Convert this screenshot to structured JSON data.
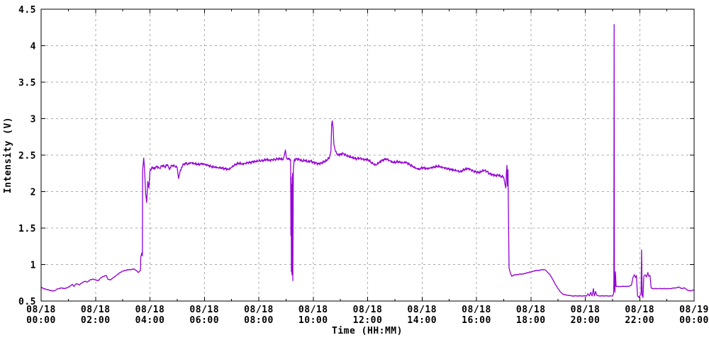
{
  "chart_data": {
    "type": "line",
    "title": "",
    "xlabel": "Time (HH:MM)",
    "ylabel": "Intensity (V)",
    "xlim_hours": [
      0,
      24
    ],
    "ylim": [
      0.5,
      4.5
    ],
    "x_major_tick_interval_hours": 2,
    "x_minor_tick_interval_hours": 1,
    "grid": "dashed, both axes",
    "legend": "none",
    "colors": {
      "line": "#9400d3",
      "grid": "#aaaaaa",
      "axis": "#000000",
      "text": "#000000",
      "background": "#ffffff"
    },
    "y_ticks": [
      "0.5",
      "1",
      "1.5",
      "2",
      "2.5",
      "3",
      "3.5",
      "4",
      "4.5"
    ],
    "x_ticks": [
      {
        "date": "08/18",
        "time": "00:00"
      },
      {
        "date": "08/18",
        "time": "02:00"
      },
      {
        "date": "08/18",
        "time": "04:00"
      },
      {
        "date": "08/18",
        "time": "06:00"
      },
      {
        "date": "08/18",
        "time": "08:00"
      },
      {
        "date": "08/18",
        "time": "10:00"
      },
      {
        "date": "08/18",
        "time": "12:00"
      },
      {
        "date": "08/18",
        "time": "14:00"
      },
      {
        "date": "08/18",
        "time": "16:00"
      },
      {
        "date": "08/18",
        "time": "18:00"
      },
      {
        "date": "08/18",
        "time": "20:00"
      },
      {
        "date": "08/18",
        "time": "22:00"
      },
      {
        "date": "08/19",
        "time": "00:00"
      }
    ],
    "noise_amplitude_v": {
      "high_level": 0.022,
      "low_level": 0.005
    },
    "series": [
      {
        "name": "intensity",
        "x_unit": "hours since 08/18 00:00",
        "y_unit": "V",
        "points": [
          [
            0.0,
            0.69
          ],
          [
            0.1,
            0.67
          ],
          [
            0.2,
            0.66
          ],
          [
            0.3,
            0.65
          ],
          [
            0.4,
            0.64
          ],
          [
            0.5,
            0.64
          ],
          [
            0.57,
            0.66
          ],
          [
            0.65,
            0.67
          ],
          [
            0.75,
            0.68
          ],
          [
            0.85,
            0.67
          ],
          [
            0.95,
            0.68
          ],
          [
            1.05,
            0.7
          ],
          [
            1.15,
            0.73
          ],
          [
            1.2,
            0.7
          ],
          [
            1.3,
            0.74
          ],
          [
            1.4,
            0.72
          ],
          [
            1.5,
            0.75
          ],
          [
            1.6,
            0.77
          ],
          [
            1.7,
            0.76
          ],
          [
            1.8,
            0.79
          ],
          [
            1.9,
            0.8
          ],
          [
            2.0,
            0.79
          ],
          [
            2.1,
            0.78
          ],
          [
            2.2,
            0.82
          ],
          [
            2.3,
            0.84
          ],
          [
            2.4,
            0.85
          ],
          [
            2.45,
            0.8
          ],
          [
            2.55,
            0.79
          ],
          [
            2.65,
            0.82
          ],
          [
            2.8,
            0.86
          ],
          [
            2.9,
            0.89
          ],
          [
            3.0,
            0.91
          ],
          [
            3.1,
            0.92
          ],
          [
            3.2,
            0.93
          ],
          [
            3.3,
            0.93
          ],
          [
            3.4,
            0.94
          ],
          [
            3.5,
            0.92
          ],
          [
            3.57,
            0.89
          ],
          [
            3.62,
            0.91
          ],
          [
            3.65,
            0.92
          ],
          [
            3.66,
            1.1
          ],
          [
            3.7,
            1.16
          ],
          [
            3.72,
            1.12
          ],
          [
            3.73,
            2.28
          ],
          [
            3.77,
            2.46
          ],
          [
            3.8,
            2.32
          ],
          [
            3.84,
            1.98
          ],
          [
            3.88,
            1.85
          ],
          [
            3.92,
            2.14
          ],
          [
            3.96,
            2.05
          ],
          [
            4.0,
            2.28
          ],
          [
            4.08,
            2.34
          ],
          [
            4.15,
            2.31
          ],
          [
            4.25,
            2.35
          ],
          [
            4.35,
            2.32
          ],
          [
            4.45,
            2.36
          ],
          [
            4.55,
            2.34
          ],
          [
            4.65,
            2.37
          ],
          [
            4.72,
            2.3
          ],
          [
            4.8,
            2.36
          ],
          [
            4.9,
            2.35
          ],
          [
            5.0,
            2.33
          ],
          [
            5.05,
            2.18
          ],
          [
            5.12,
            2.3
          ],
          [
            5.2,
            2.36
          ],
          [
            5.3,
            2.39
          ],
          [
            5.4,
            2.38
          ],
          [
            5.5,
            2.4
          ],
          [
            5.6,
            2.39
          ],
          [
            5.7,
            2.38
          ],
          [
            5.8,
            2.37
          ],
          [
            5.9,
            2.38
          ],
          [
            6.0,
            2.37
          ],
          [
            6.1,
            2.36
          ],
          [
            6.2,
            2.35
          ],
          [
            6.3,
            2.34
          ],
          [
            6.4,
            2.34
          ],
          [
            6.5,
            2.33
          ],
          [
            6.6,
            2.33
          ],
          [
            6.7,
            2.32
          ],
          [
            6.8,
            2.31
          ],
          [
            6.9,
            2.3
          ],
          [
            7.0,
            2.33
          ],
          [
            7.1,
            2.36
          ],
          [
            7.2,
            2.38
          ],
          [
            7.3,
            2.39
          ],
          [
            7.4,
            2.38
          ],
          [
            7.5,
            2.39
          ],
          [
            7.6,
            2.4
          ],
          [
            7.7,
            2.4
          ],
          [
            7.8,
            2.41
          ],
          [
            7.9,
            2.41
          ],
          [
            8.0,
            2.42
          ],
          [
            8.1,
            2.42
          ],
          [
            8.2,
            2.43
          ],
          [
            8.3,
            2.44
          ],
          [
            8.4,
            2.43
          ],
          [
            8.5,
            2.44
          ],
          [
            8.6,
            2.44
          ],
          [
            8.7,
            2.45
          ],
          [
            8.8,
            2.45
          ],
          [
            8.9,
            2.44
          ],
          [
            8.98,
            2.57
          ],
          [
            9.02,
            2.45
          ],
          [
            9.1,
            2.44
          ],
          [
            9.17,
            2.44
          ],
          [
            9.18,
            1.4
          ],
          [
            9.19,
            2.2
          ],
          [
            9.2,
            0.9
          ],
          [
            9.21,
            2.1
          ],
          [
            9.22,
            0.86
          ],
          [
            9.24,
            2.25
          ],
          [
            9.25,
            0.78
          ],
          [
            9.27,
            2.3
          ],
          [
            9.3,
            2.43
          ],
          [
            9.4,
            2.45
          ],
          [
            9.5,
            2.44
          ],
          [
            9.6,
            2.42
          ],
          [
            9.7,
            2.43
          ],
          [
            9.8,
            2.41
          ],
          [
            9.9,
            2.42
          ],
          [
            10.0,
            2.4
          ],
          [
            10.1,
            2.39
          ],
          [
            10.2,
            2.38
          ],
          [
            10.3,
            2.39
          ],
          [
            10.4,
            2.41
          ],
          [
            10.5,
            2.43
          ],
          [
            10.6,
            2.47
          ],
          [
            10.65,
            2.55
          ],
          [
            10.68,
            2.92
          ],
          [
            10.7,
            2.97
          ],
          [
            10.73,
            2.88
          ],
          [
            10.76,
            2.65
          ],
          [
            10.82,
            2.55
          ],
          [
            10.9,
            2.5
          ],
          [
            11.0,
            2.51
          ],
          [
            11.1,
            2.52
          ],
          [
            11.2,
            2.5
          ],
          [
            11.3,
            2.48
          ],
          [
            11.4,
            2.47
          ],
          [
            11.5,
            2.46
          ],
          [
            11.6,
            2.45
          ],
          [
            11.7,
            2.46
          ],
          [
            11.8,
            2.45
          ],
          [
            11.9,
            2.44
          ],
          [
            12.0,
            2.44
          ],
          [
            12.1,
            2.41
          ],
          [
            12.2,
            2.38
          ],
          [
            12.3,
            2.36
          ],
          [
            12.4,
            2.39
          ],
          [
            12.5,
            2.42
          ],
          [
            12.6,
            2.44
          ],
          [
            12.7,
            2.45
          ],
          [
            12.8,
            2.43
          ],
          [
            12.9,
            2.41
          ],
          [
            13.0,
            2.4
          ],
          [
            13.1,
            2.41
          ],
          [
            13.2,
            2.4
          ],
          [
            13.3,
            2.39
          ],
          [
            13.4,
            2.4
          ],
          [
            13.5,
            2.38
          ],
          [
            13.6,
            2.36
          ],
          [
            13.7,
            2.34
          ],
          [
            13.8,
            2.32
          ],
          [
            13.9,
            2.31
          ],
          [
            14.0,
            2.33
          ],
          [
            14.1,
            2.32
          ],
          [
            14.2,
            2.31
          ],
          [
            14.3,
            2.32
          ],
          [
            14.4,
            2.33
          ],
          [
            14.5,
            2.34
          ],
          [
            14.6,
            2.35
          ],
          [
            14.7,
            2.34
          ],
          [
            14.8,
            2.33
          ],
          [
            14.9,
            2.32
          ],
          [
            15.0,
            2.31
          ],
          [
            15.1,
            2.3
          ],
          [
            15.2,
            2.29
          ],
          [
            15.3,
            2.28
          ],
          [
            15.4,
            2.27
          ],
          [
            15.5,
            2.29
          ],
          [
            15.6,
            2.31
          ],
          [
            15.7,
            2.32
          ],
          [
            15.8,
            2.3
          ],
          [
            15.9,
            2.28
          ],
          [
            16.0,
            2.27
          ],
          [
            16.1,
            2.26
          ],
          [
            16.2,
            2.28
          ],
          [
            16.3,
            2.29
          ],
          [
            16.4,
            2.27
          ],
          [
            16.5,
            2.24
          ],
          [
            16.6,
            2.23
          ],
          [
            16.7,
            2.22
          ],
          [
            16.8,
            2.23
          ],
          [
            16.9,
            2.21
          ],
          [
            17.0,
            2.2
          ],
          [
            17.05,
            2.1
          ],
          [
            17.08,
            2.05
          ],
          [
            17.1,
            2.25
          ],
          [
            17.12,
            2.36
          ],
          [
            17.14,
            2.08
          ],
          [
            17.16,
            2.3
          ],
          [
            17.17,
            1.9
          ],
          [
            17.2,
            0.95
          ],
          [
            17.25,
            0.88
          ],
          [
            17.3,
            0.84
          ],
          [
            17.4,
            0.86
          ],
          [
            17.5,
            0.86
          ],
          [
            17.6,
            0.87
          ],
          [
            17.7,
            0.87
          ],
          [
            17.8,
            0.88
          ],
          [
            17.9,
            0.89
          ],
          [
            18.0,
            0.9
          ],
          [
            18.1,
            0.91
          ],
          [
            18.2,
            0.92
          ],
          [
            18.3,
            0.92
          ],
          [
            18.4,
            0.93
          ],
          [
            18.5,
            0.93
          ],
          [
            18.55,
            0.92
          ],
          [
            18.6,
            0.9
          ],
          [
            18.7,
            0.86
          ],
          [
            18.8,
            0.8
          ],
          [
            18.9,
            0.73
          ],
          [
            19.0,
            0.67
          ],
          [
            19.1,
            0.62
          ],
          [
            19.2,
            0.59
          ],
          [
            19.35,
            0.58
          ],
          [
            19.5,
            0.57
          ],
          [
            19.7,
            0.57
          ],
          [
            19.9,
            0.57
          ],
          [
            20.05,
            0.57
          ],
          [
            20.1,
            0.6
          ],
          [
            20.15,
            0.57
          ],
          [
            20.2,
            0.62
          ],
          [
            20.25,
            0.57
          ],
          [
            20.3,
            0.67
          ],
          [
            20.33,
            0.57
          ],
          [
            20.38,
            0.63
          ],
          [
            20.42,
            0.58
          ],
          [
            20.5,
            0.57
          ],
          [
            20.7,
            0.57
          ],
          [
            20.9,
            0.57
          ],
          [
            21.0,
            0.57
          ],
          [
            21.04,
            0.6
          ],
          [
            21.05,
            0.75
          ],
          [
            21.06,
            4.29
          ],
          [
            21.07,
            0.7
          ],
          [
            21.09,
            0.62
          ],
          [
            21.11,
            0.9
          ],
          [
            21.13,
            0.7
          ],
          [
            21.2,
            0.7
          ],
          [
            21.35,
            0.7
          ],
          [
            21.5,
            0.7
          ],
          [
            21.6,
            0.7
          ],
          [
            21.7,
            0.72
          ],
          [
            21.75,
            0.82
          ],
          [
            21.8,
            0.86
          ],
          [
            21.85,
            0.82
          ],
          [
            21.88,
            0.85
          ],
          [
            21.92,
            0.57
          ],
          [
            21.97,
            0.55
          ],
          [
            22.0,
            0.57
          ],
          [
            22.05,
            0.6
          ],
          [
            22.07,
            1.2
          ],
          [
            22.09,
            0.58
          ],
          [
            22.12,
            0.55
          ],
          [
            22.15,
            0.84
          ],
          [
            22.2,
            0.86
          ],
          [
            22.25,
            0.83
          ],
          [
            22.3,
            0.89
          ],
          [
            22.33,
            0.84
          ],
          [
            22.38,
            0.85
          ],
          [
            22.42,
            0.68
          ],
          [
            22.5,
            0.67
          ],
          [
            22.7,
            0.67
          ],
          [
            22.9,
            0.67
          ],
          [
            23.1,
            0.67
          ],
          [
            23.3,
            0.68
          ],
          [
            23.45,
            0.69
          ],
          [
            23.55,
            0.67
          ],
          [
            23.65,
            0.68
          ],
          [
            23.75,
            0.65
          ],
          [
            23.85,
            0.64
          ],
          [
            24.0,
            0.65
          ]
        ]
      }
    ]
  }
}
